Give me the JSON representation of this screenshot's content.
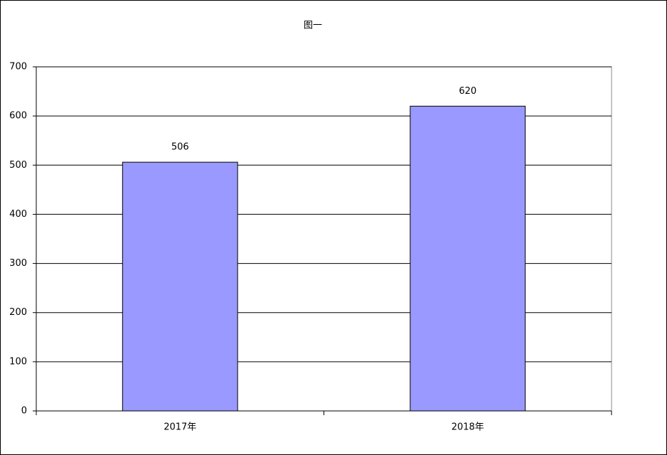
{
  "chart_data": {
    "type": "bar",
    "title": "图一",
    "categories": [
      "2017年",
      "2018年"
    ],
    "values": [
      506,
      620
    ],
    "color": "#9999ff",
    "ylim": [
      0,
      700
    ],
    "yticks": [
      0,
      100,
      200,
      300,
      400,
      500,
      600,
      700
    ],
    "grid": true
  }
}
